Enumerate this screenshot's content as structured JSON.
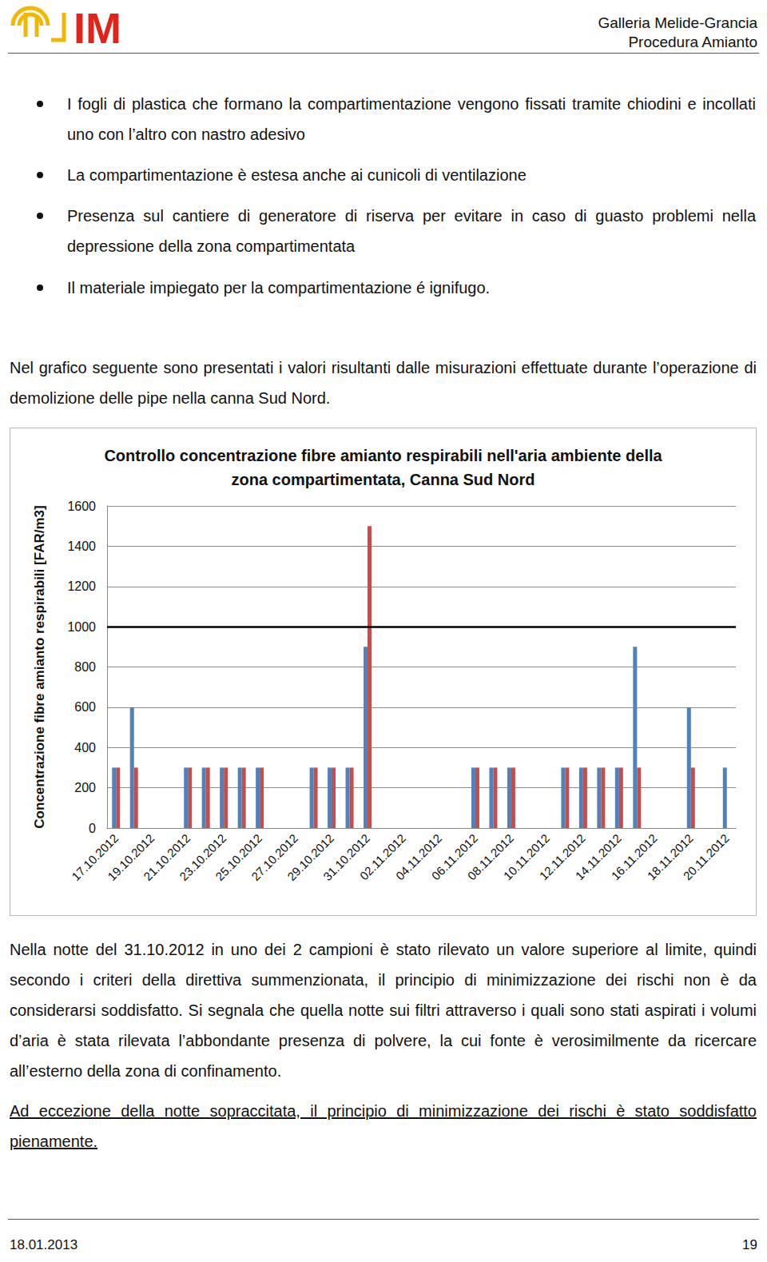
{
  "header": {
    "logo": "IM",
    "title_lines": [
      "Galleria Melide-Grancia",
      "Procedura Amianto"
    ]
  },
  "bullets": [
    "I fogli di plastica che formano la compartimentazione vengono fissati tramite chiodini e incollati uno con l’altro con nastro adesivo",
    "La compartimentazione è estesa anche ai cunicoli di ventilazione",
    "Presenza sul cantiere di generatore di riserva per evitare in caso di guasto problemi nella depressione della zona compartimentata",
    "Il materiale impiegato per la compartimentazione é ignifugo."
  ],
  "intro": "Nel grafico seguente sono presentati i valori risultanti dalle misurazioni effettuate durante l’operazione di demolizione delle pipe nella canna Sud Nord.",
  "chart_data": {
    "type": "bar",
    "title": "Controllo concentrazione fibre amianto respirabili nell'aria ambiente della\nzona compartimentata, Canna Sud Nord",
    "y_label": "Concentrazione fibre amianto respirabili [FAR/m3]",
    "categories": [
      "17.10.2012",
      null,
      "19.10.2012",
      null,
      "21.10.2012",
      null,
      "23.10.2012",
      null,
      "25.10.2012",
      null,
      "27.10.2012",
      null,
      "29.10.2012",
      null,
      "31.10.2012",
      null,
      "02.11.2012",
      null,
      "04.11.2012",
      null,
      "06.11.2012",
      null,
      "08.11.2012",
      null,
      "10.11.2012",
      null,
      "12.11.2012",
      null,
      "14.11.2012",
      null,
      "16.11.2012",
      null,
      "18.11.2012",
      null,
      "20.11.2012"
    ],
    "series": [
      {
        "color": "#4f81bd",
        "values": [
          300,
          600,
          null,
          null,
          300,
          300,
          300,
          300,
          300,
          null,
          null,
          300,
          300,
          300,
          900,
          null,
          null,
          null,
          null,
          null,
          300,
          300,
          300,
          null,
          null,
          300,
          300,
          300,
          300,
          900,
          null,
          null,
          600,
          null,
          300
        ]
      },
      {
        "color": "#c0504d",
        "values": [
          300,
          300,
          null,
          null,
          300,
          300,
          300,
          300,
          300,
          null,
          null,
          300,
          300,
          300,
          1500,
          null,
          null,
          null,
          null,
          null,
          300,
          300,
          300,
          null,
          null,
          300,
          300,
          300,
          300,
          300,
          null,
          null,
          300,
          null,
          null
        ]
      }
    ],
    "limit": 1000,
    "ylim": [
      0,
      1600
    ],
    "yticks": [
      0,
      200,
      400,
      600,
      800,
      1000,
      1200,
      1400,
      1600
    ],
    "grid": true
  },
  "paragraphs": [
    "Nella notte del 31.10.2012 in uno dei 2 campioni è stato rilevato un valore superiore al limite, quindi secondo i criteri della direttiva summenzionata, il principio di minimizzazione dei rischi non è da considerarsi soddisfatto. Si segnala che quella notte sui filtri attraverso i quali sono stati aspirati i volumi d’aria è stata rilevata l’abbondante presenza di polvere, la cui fonte è verosimilmente da ricercare all’esterno della zona di confinamento."
  ],
  "underlined": "Ad eccezione della notte sopraccitata, il principio di minimizzazione dei rischi è stato soddisfatto pienamente.",
  "footer": {
    "date": "18.01.2013",
    "page": "19"
  }
}
